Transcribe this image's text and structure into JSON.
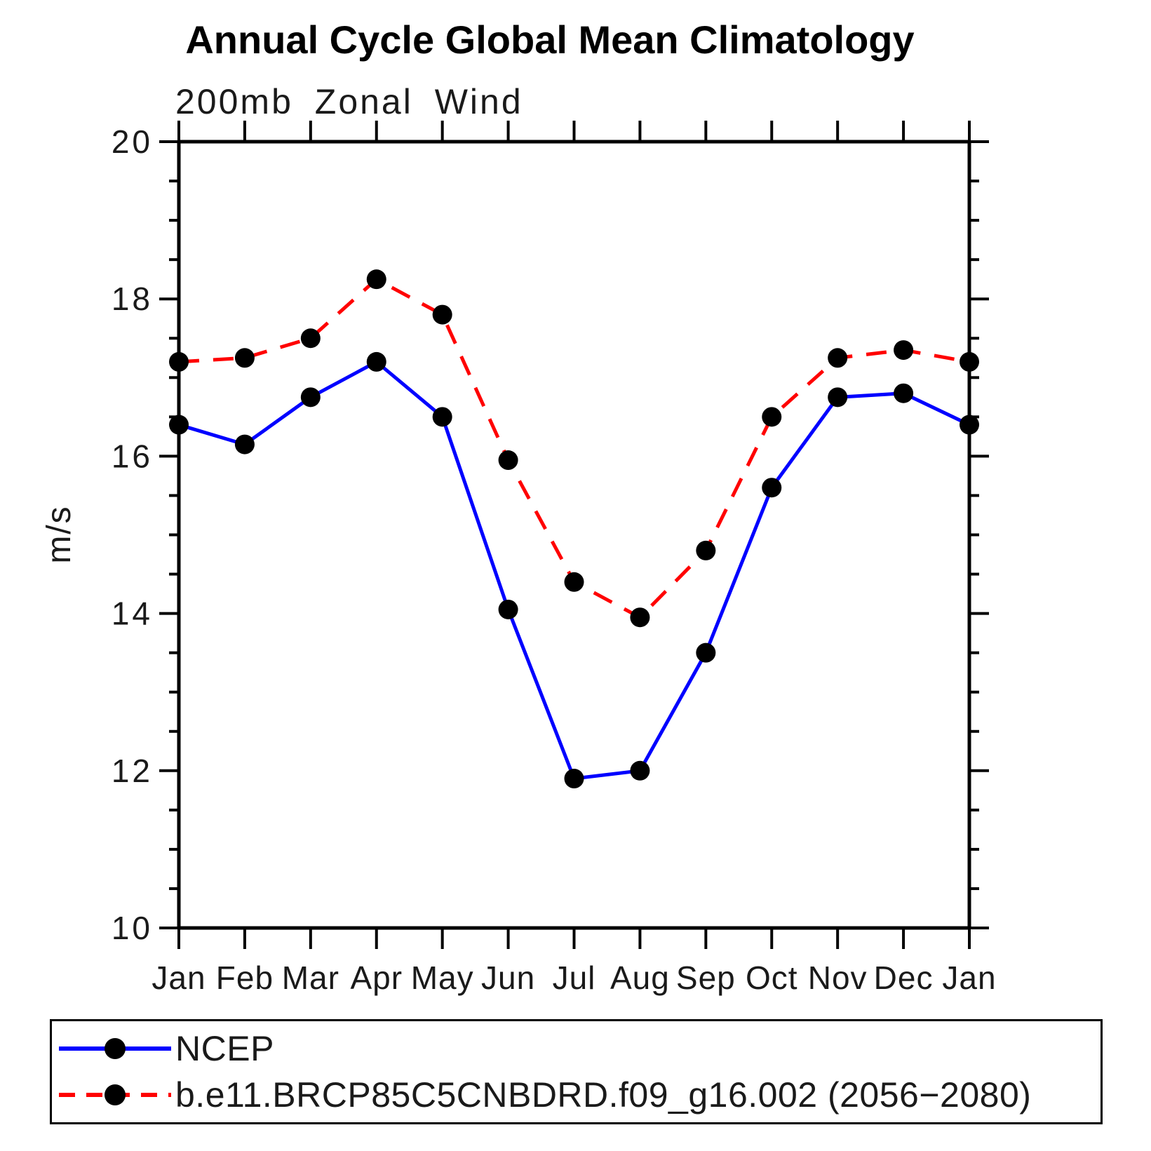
{
  "chart_data": {
    "type": "line",
    "title": "Annual Cycle Global Mean Climatology",
    "subtitle": "200mb Zonal Wind",
    "ylabel": "m/s",
    "ylim": [
      10,
      20
    ],
    "y_major_ticks": [
      20,
      18,
      16,
      14,
      12,
      10
    ],
    "y_minor_step": 0.5,
    "grid": false,
    "legend_position": "bottom-box",
    "categories": [
      "Jan",
      "Feb",
      "Mar",
      "Apr",
      "May",
      "Jun",
      "Jul",
      "Aug",
      "Sep",
      "Oct",
      "Nov",
      "Dec",
      "Jan"
    ],
    "marker": {
      "shape": "circle",
      "color": "#000000"
    },
    "series": [
      {
        "name": "NCEP",
        "color": "#0000ff",
        "style": "solid",
        "values": [
          16.4,
          16.15,
          16.75,
          17.2,
          16.5,
          14.05,
          11.9,
          12.0,
          13.5,
          15.6,
          16.75,
          16.8,
          16.4
        ]
      },
      {
        "name": "b.e11.BRCP85C5CNBDRD.f09_g16.002 (2056−2080)",
        "color": "#ff0000",
        "style": "dashed",
        "values": [
          17.2,
          17.25,
          17.5,
          18.25,
          17.8,
          15.95,
          14.4,
          13.95,
          14.8,
          16.5,
          17.25,
          17.35,
          17.2
        ]
      }
    ]
  }
}
